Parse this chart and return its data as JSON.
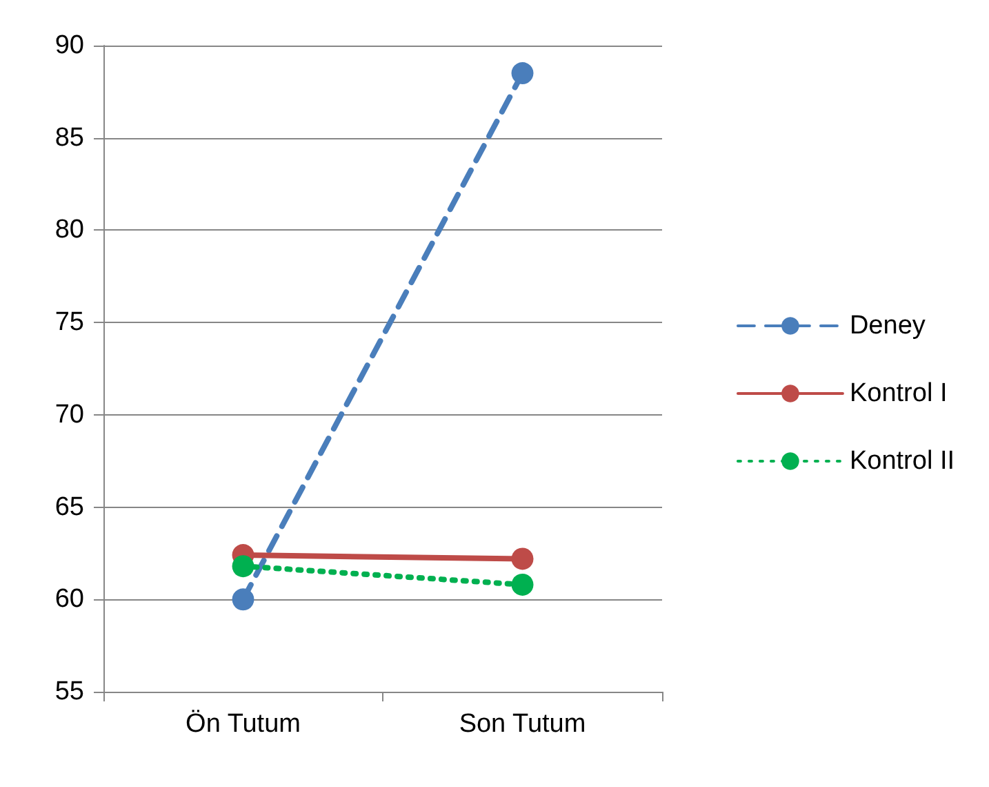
{
  "chart_data": {
    "type": "line",
    "categories": [
      "Ön Tutum",
      "Son Tutum"
    ],
    "series": [
      {
        "name": "Deney",
        "color": "#4a7ebb",
        "values": [
          60.0,
          88.5
        ],
        "line_style": "dashed"
      },
      {
        "name": "Kontrol I",
        "color": "#be4b48",
        "values": [
          62.4,
          62.2
        ],
        "line_style": "solid"
      },
      {
        "name": "Kontrol II",
        "color": "#00b050",
        "values": [
          61.8,
          60.8
        ],
        "line_style": "dotted"
      }
    ],
    "ylim": [
      55,
      90
    ],
    "yticks": [
      55,
      60,
      65,
      70,
      75,
      80,
      85,
      90
    ],
    "grid": "y",
    "legend": "right",
    "marker": "circle"
  }
}
